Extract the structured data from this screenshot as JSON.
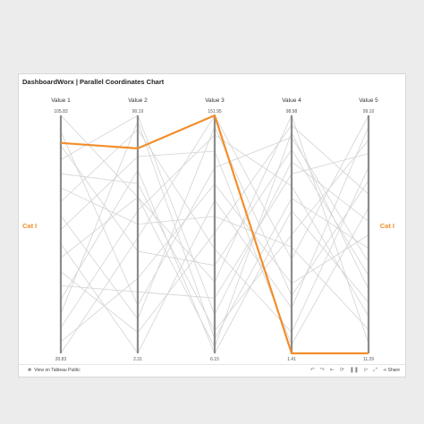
{
  "title": "DashboardWorx | Parallel Coordinates Chart",
  "chart_data": {
    "type": "parallel_coordinates",
    "axes": [
      {
        "name": "Value 1",
        "max": 105.83,
        "min": 20.83,
        "max_label": "105.83",
        "min_label": "20.83"
      },
      {
        "name": "Value 2",
        "max": 90.19,
        "min": 2.31,
        "max_label": "90.19",
        "min_label": "2.31"
      },
      {
        "name": "Value 3",
        "max": 151.95,
        "min": 6.15,
        "max_label": "151.95",
        "min_label": "6.15"
      },
      {
        "name": "Value 4",
        "max": 98.98,
        "min": 1.41,
        "max_label": "98.98",
        "min_label": "1.41"
      },
      {
        "name": "Value 5",
        "max": 99.1,
        "min": 11.29,
        "max_label": "99.10",
        "min_label": "11.29"
      }
    ],
    "highlight": {
      "name": "Cat I",
      "color": "#f28e2b",
      "values": [
        96.0,
        78.0,
        151.95,
        1.41,
        11.29
      ]
    },
    "background_color": "#d3d3d3",
    "background_lines": [
      [
        105.83,
        60.0,
        50.0,
        98.98,
        15.0
      ],
      [
        20.83,
        45.0,
        151.95,
        40.0,
        99.1
      ],
      [
        90.0,
        90.19,
        30.0,
        80.0,
        60.0
      ],
      [
        60.0,
        2.31,
        100.0,
        20.0,
        95.0
      ],
      [
        40.0,
        70.0,
        6.15,
        60.0,
        30.0
      ],
      [
        100.0,
        20.0,
        120.0,
        90.0,
        45.0
      ],
      [
        75.0,
        85.0,
        70.0,
        10.0,
        80.0
      ],
      [
        30.0,
        55.0,
        140.0,
        70.0,
        25.0
      ],
      [
        50.0,
        10.0,
        80.0,
        95.0,
        70.0
      ],
      [
        85.0,
        65.0,
        20.0,
        50.0,
        90.0
      ],
      [
        25.0,
        30.0,
        110.0,
        30.0,
        55.0
      ],
      [
        95.0,
        40.0,
        60.0,
        85.0,
        40.0
      ],
      [
        65.0,
        75.0,
        130.0,
        5.0,
        65.0
      ],
      [
        45.0,
        25.0,
        40.0,
        75.0,
        85.0
      ],
      [
        80.0,
        50.0,
        90.0,
        45.0,
        20.0
      ],
      [
        35.0,
        88.0,
        15.0,
        65.0,
        50.0
      ],
      [
        70.0,
        15.0,
        145.0,
        25.0,
        75.0
      ],
      [
        55.0,
        60.0,
        10.0,
        92.0,
        35.0
      ]
    ]
  },
  "footer": {
    "link_text": "View on Tableau Public",
    "share_label": "Share",
    "icons": [
      "tableau-logo-icon",
      "undo-icon",
      "redo-icon",
      "revert-icon",
      "refresh-icon",
      "pause-icon",
      "download-icon",
      "fullscreen-icon",
      "share-icon"
    ]
  }
}
